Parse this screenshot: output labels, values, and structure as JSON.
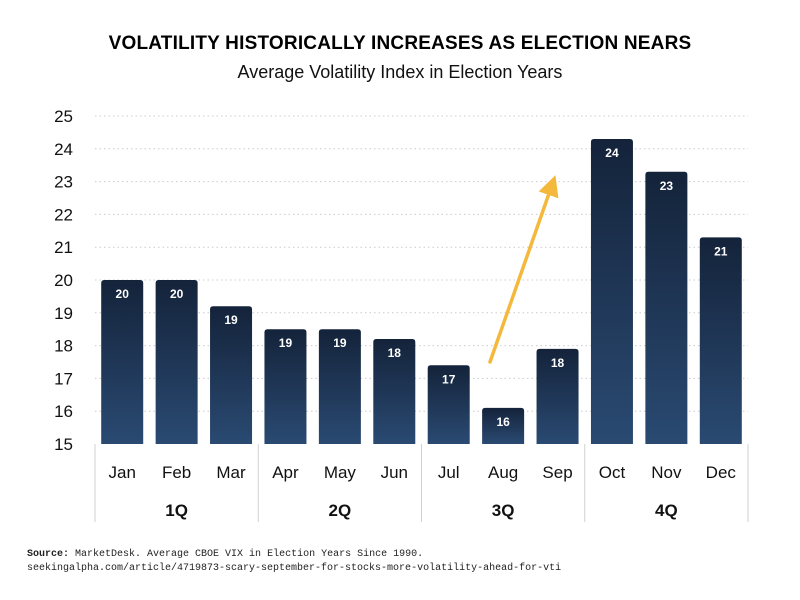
{
  "chart_data": {
    "type": "bar",
    "title": "VOLATILITY HISTORICALLY INCREASES AS ELECTION NEARS",
    "subtitle": "Average Volatility Index in Election Years",
    "categories": [
      "Jan",
      "Feb",
      "Mar",
      "Apr",
      "May",
      "Jun",
      "Jul",
      "Aug",
      "Sep",
      "Oct",
      "Nov",
      "Dec"
    ],
    "groups": [
      {
        "label": "1Q",
        "months": [
          "Jan",
          "Feb",
          "Mar"
        ]
      },
      {
        "label": "2Q",
        "months": [
          "Apr",
          "May",
          "Jun"
        ]
      },
      {
        "label": "3Q",
        "months": [
          "Jul",
          "Aug",
          "Sep"
        ]
      },
      {
        "label": "4Q",
        "months": [
          "Oct",
          "Nov",
          "Dec"
        ]
      }
    ],
    "values": [
      20.0,
      20.0,
      19.2,
      18.5,
      18.5,
      18.2,
      17.4,
      16.1,
      17.9,
      24.3,
      23.3,
      21.3
    ],
    "data_labels": [
      "20",
      "20",
      "19",
      "19",
      "19",
      "18",
      "17",
      "16",
      "18",
      "24",
      "23",
      "21"
    ],
    "ylim": [
      15,
      25
    ],
    "yticks": [
      "15",
      "16",
      "17",
      "18",
      "19",
      "20",
      "21",
      "22",
      "23",
      "24",
      "25"
    ],
    "grid": true,
    "annotation": "upward arrow from Aug to Oct",
    "colors": {
      "bar_top": "#14233a",
      "bar_bottom": "#2a4a72",
      "arrow": "#f4b93c",
      "grid": "#cccccc"
    }
  },
  "source": {
    "label": "Source:",
    "text": "MarketDesk. Average CBOE VIX in Election Years Since 1990.",
    "url": "seekingalpha.com/article/4719873-scary-september-for-stocks-more-volatility-ahead-for-vti"
  }
}
